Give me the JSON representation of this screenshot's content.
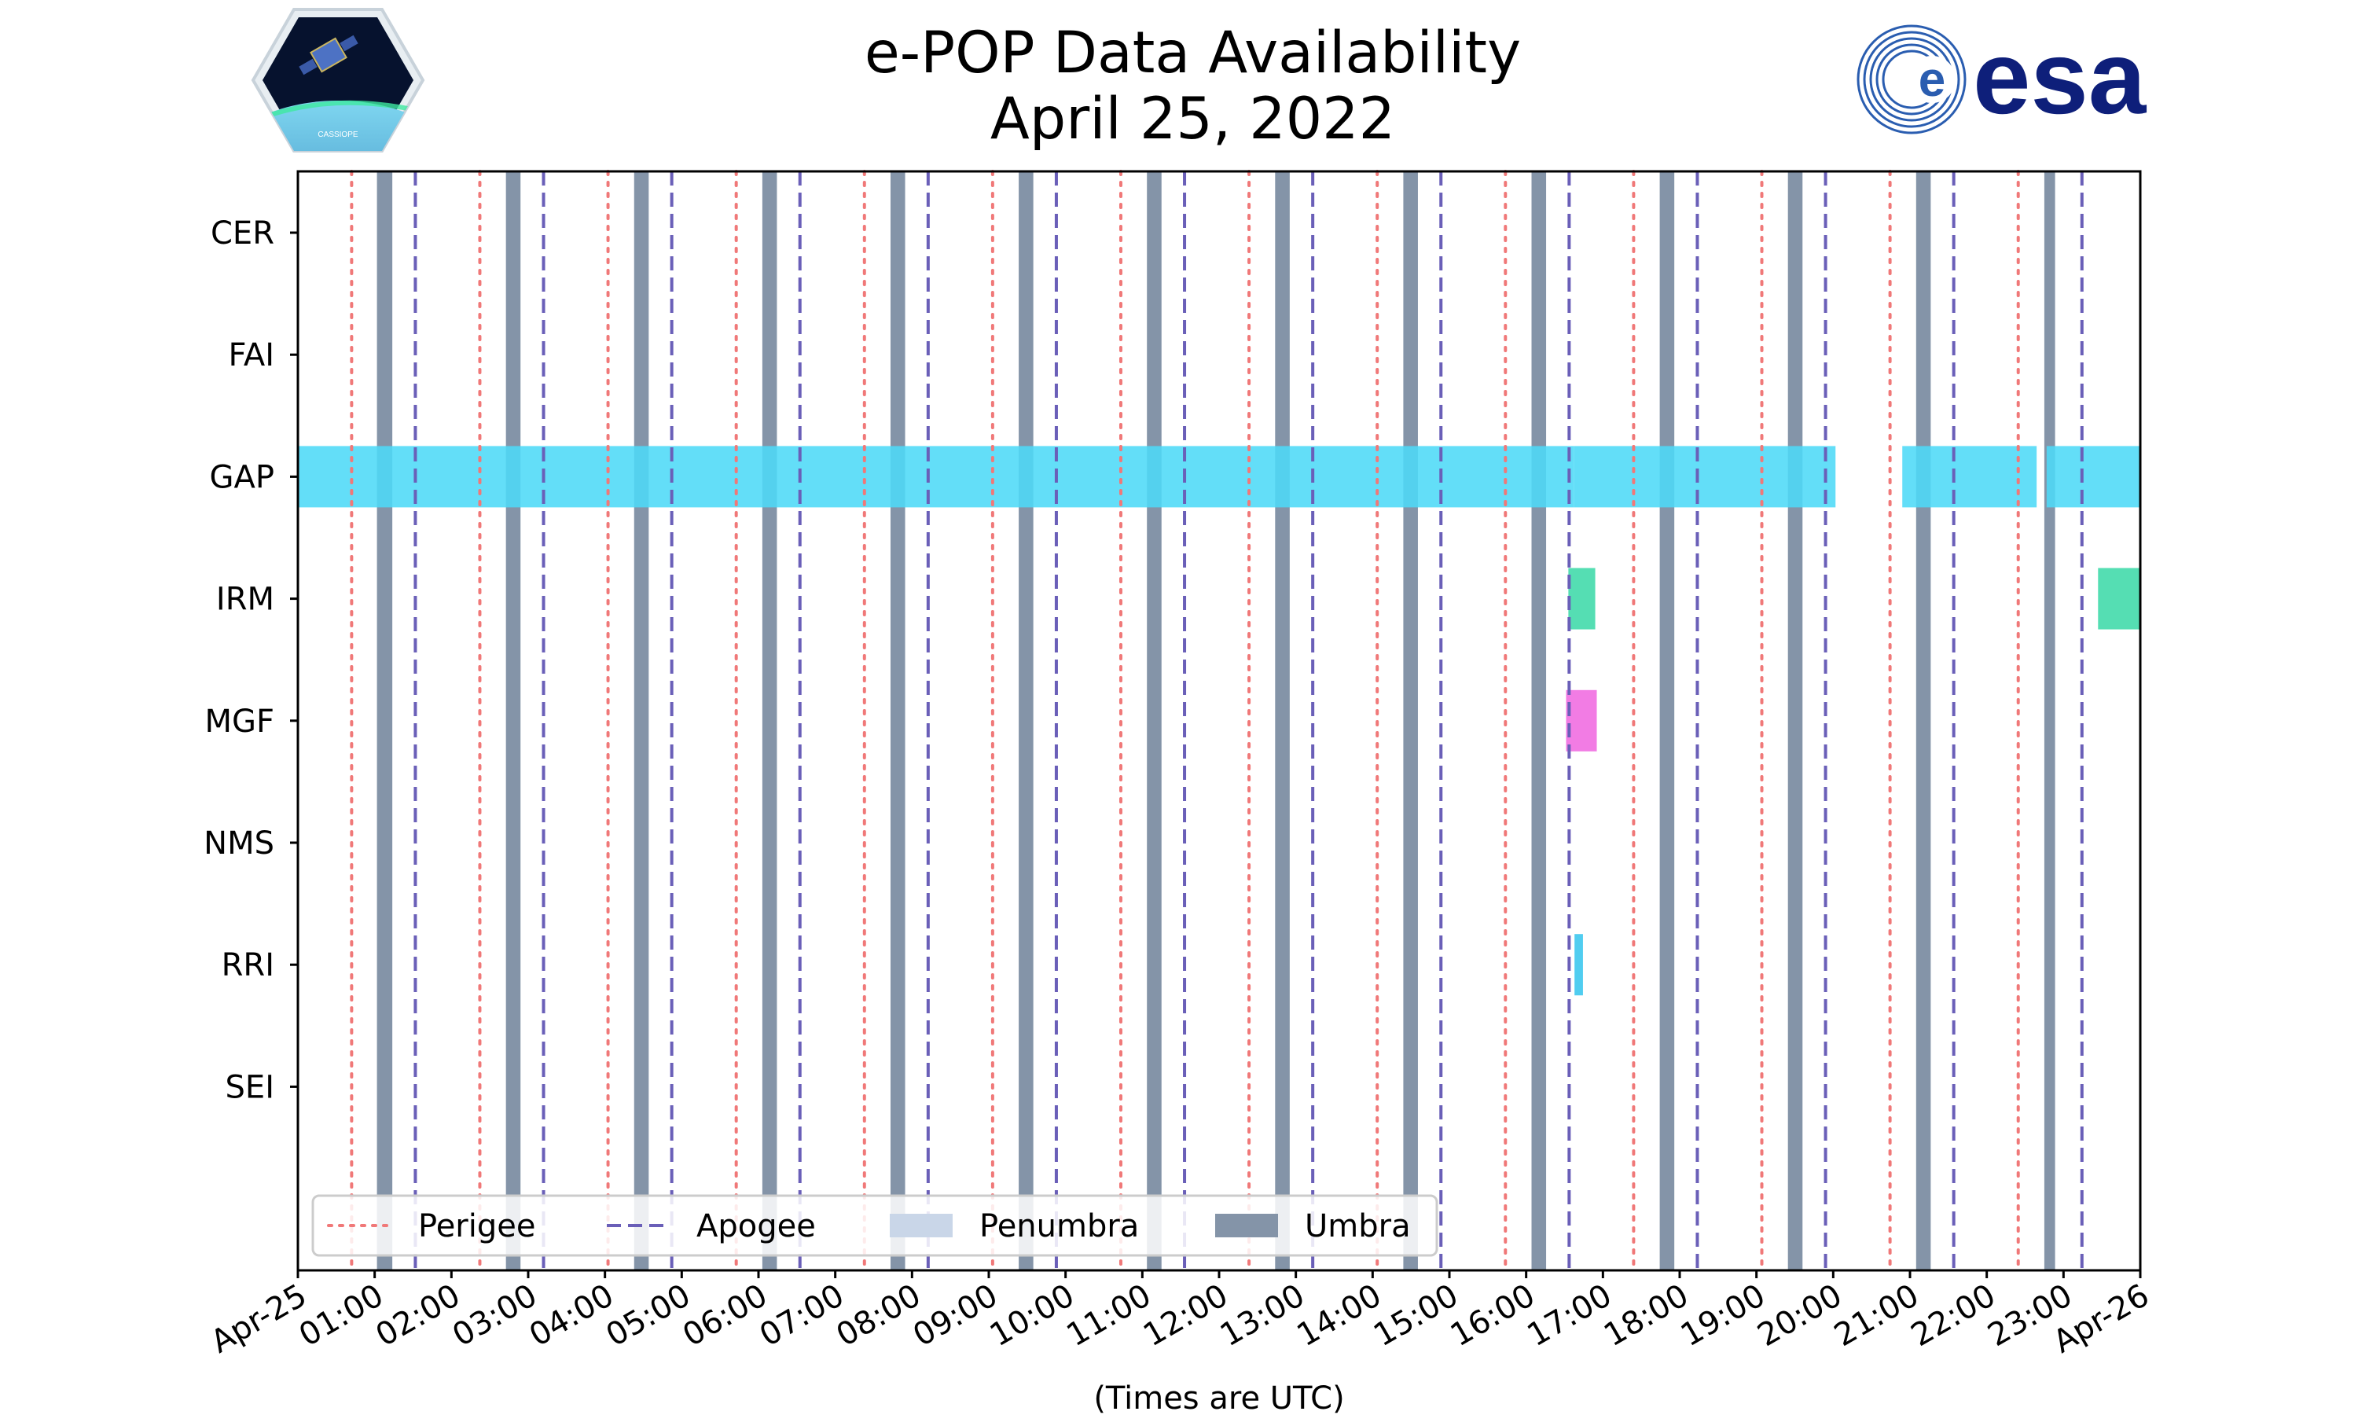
{
  "header": {
    "title_line1": "e-POP Data Availability",
    "title_line2": "April 25, 2022",
    "left_logo": {
      "icon": "cassiope-mission-patch-icon",
      "text": "CASSIOPE"
    },
    "right_logo": {
      "icon": "esa-logo-icon",
      "text": "esa",
      "color": "#0e1f7a"
    }
  },
  "chart_data": {
    "type": "timeline",
    "title": "e-POP Data Availability\nApril 25, 2022",
    "xlabel": "(Times are UTC)",
    "ylabel": "",
    "x_unit": "hours since 2022-04-25 00:00 UTC",
    "xlim": [
      0,
      24
    ],
    "x_ticks": [
      0,
      1,
      2,
      3,
      4,
      5,
      6,
      7,
      8,
      9,
      10,
      11,
      12,
      13,
      14,
      15,
      16,
      17,
      18,
      19,
      20,
      21,
      22,
      23,
      24
    ],
    "x_tick_labels": [
      "Apr-25",
      "01:00",
      "02:00",
      "03:00",
      "04:00",
      "05:00",
      "06:00",
      "07:00",
      "08:00",
      "09:00",
      "10:00",
      "11:00",
      "12:00",
      "13:00",
      "14:00",
      "15:00",
      "16:00",
      "17:00",
      "18:00",
      "19:00",
      "20:00",
      "21:00",
      "22:00",
      "23:00",
      "Apr-26"
    ],
    "instruments": [
      "CER",
      "FAI",
      "GAP",
      "IRM",
      "MGF",
      "NMS",
      "RRI",
      "SEI"
    ],
    "data_intervals": {
      "CER": [],
      "FAI": [],
      "GAP": [
        [
          0.0,
          16.62
        ],
        [
          16.62,
          20.03
        ],
        [
          20.9,
          22.65
        ],
        [
          22.78,
          24.0
        ]
      ],
      "IRM": [
        [
          16.55,
          16.9
        ],
        [
          23.45,
          24.0
        ]
      ],
      "MGF": [
        [
          16.52,
          16.92
        ]
      ],
      "NMS": [],
      "RRI": [
        [
          16.63,
          16.74
        ]
      ],
      "SEI": []
    },
    "instrument_colors": {
      "GAP": "#4dd9f7",
      "IRM": "#3dd9a8",
      "MGF": "#f06ae0",
      "RRI": "#38c6ee"
    },
    "perigee_times": [
      0.7,
      2.37,
      4.04,
      5.71,
      7.38,
      9.05,
      10.72,
      12.39,
      14.06,
      15.73,
      17.4,
      19.07,
      20.74,
      22.41
    ],
    "apogee_times": [
      1.53,
      3.2,
      4.87,
      6.54,
      8.21,
      9.88,
      11.55,
      13.22,
      14.89,
      16.56,
      18.23,
      19.9,
      21.57,
      23.24
    ],
    "umbra_intervals": [
      [
        1.03,
        1.23
      ],
      [
        2.71,
        2.9
      ],
      [
        4.38,
        4.57
      ],
      [
        6.05,
        6.24
      ],
      [
        7.72,
        7.91
      ],
      [
        9.39,
        9.58
      ],
      [
        11.06,
        11.25
      ],
      [
        12.73,
        12.92
      ],
      [
        14.4,
        14.59
      ],
      [
        16.07,
        16.26
      ],
      [
        17.74,
        17.93
      ],
      [
        19.41,
        19.6
      ],
      [
        21.08,
        21.27
      ],
      [
        22.75,
        22.89
      ]
    ],
    "penumbra_intervals": [],
    "legend": {
      "placement": "lower-left",
      "entries": [
        {
          "label": "Perigee",
          "style": "dotted-line",
          "color": "#f07878"
        },
        {
          "label": "Apogee",
          "style": "dashed-line",
          "color": "#6a5fb8"
        },
        {
          "label": "Penumbra",
          "style": "patch",
          "color": "#c9d6e8"
        },
        {
          "label": "Umbra",
          "style": "patch",
          "color": "#8494a8"
        }
      ]
    },
    "grid": false
  }
}
